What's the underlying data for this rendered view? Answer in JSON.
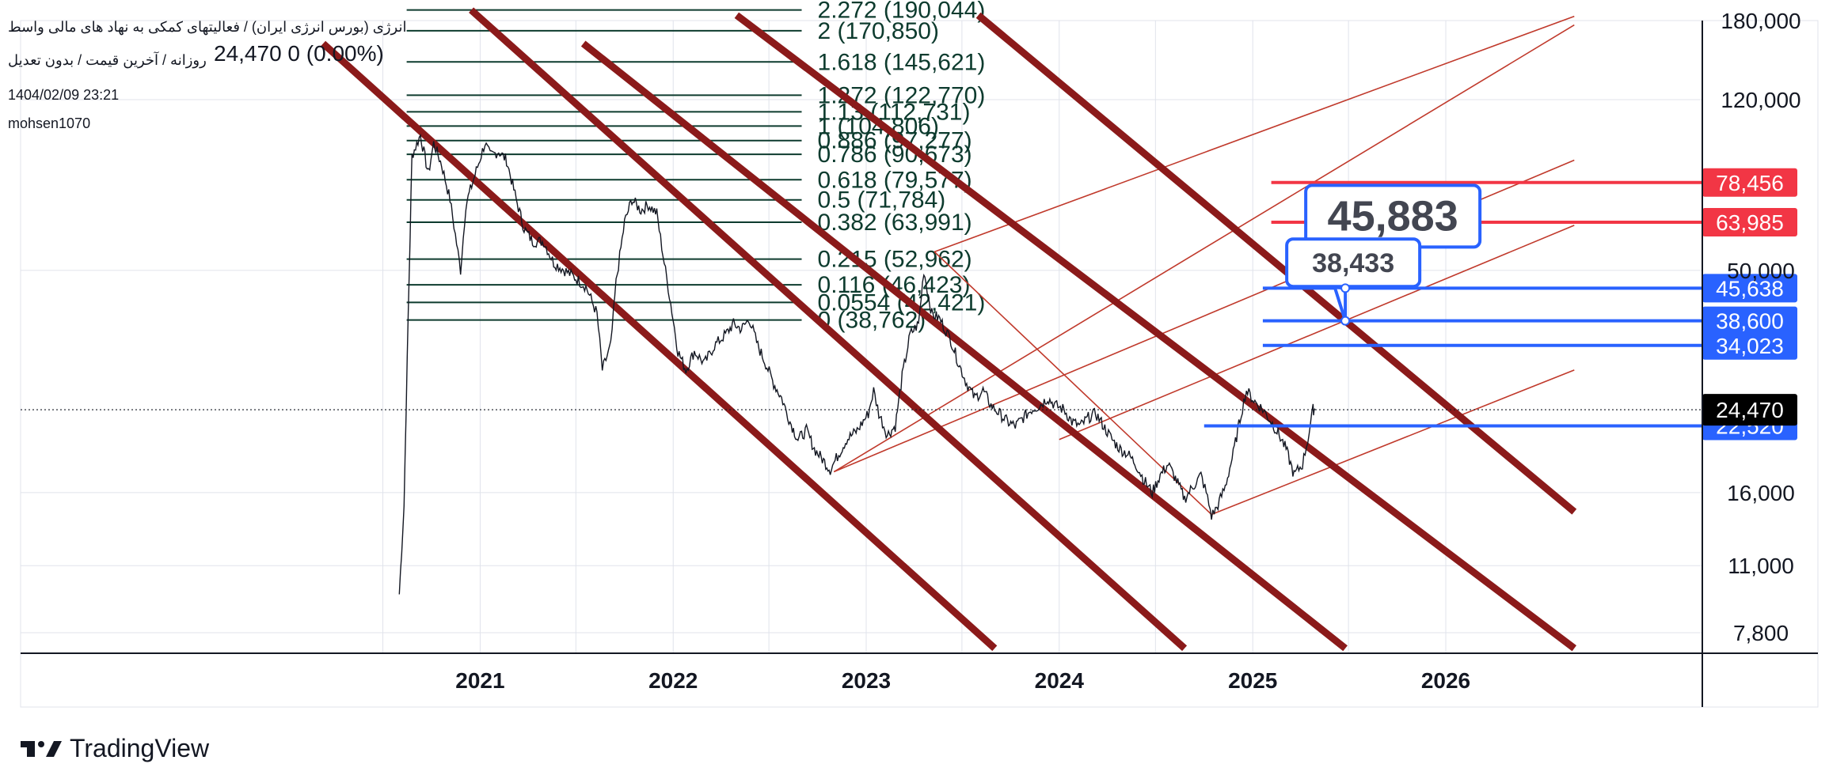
{
  "header": {
    "title": "انرژی (بورس انرژی ایران) / فعالیتهای کمکی به نهاد های مالی واسط",
    "subtitle": "روزانه / آخرین قیمت / بدون تعدیل",
    "timestamp": "1404/02/09 23:21",
    "author": "mohsen1070",
    "last_value": "24,470",
    "change": "0 (0.00%)"
  },
  "brand": {
    "name": "TradingView"
  },
  "colors": {
    "price": "#131722",
    "fib": "#0d3b2e",
    "channel": "#8b1a1a",
    "thin_red": "#c0392b",
    "blue": "#2962ff",
    "red": "#f23645",
    "grid": "#e0e3eb"
  },
  "chart_data": {
    "type": "line",
    "title": "",
    "xlabel": "",
    "ylabel": "",
    "y_scale": "log",
    "x_ticks": [
      "2021",
      "2022",
      "2023",
      "2024",
      "2025",
      "2026"
    ],
    "y_ticks": [
      "180,000",
      "120,000",
      "50,000",
      "16,000",
      "11,000",
      "7,800"
    ],
    "ylim": [
      7200,
      185000
    ],
    "series": [
      {
        "values": [
          [
            "2020-08-01",
            9500
          ],
          [
            "2020-08-10",
            15000
          ],
          [
            "2020-08-18",
            40000
          ],
          [
            "2020-08-25",
            90000
          ],
          [
            "2020-09-10",
            100000
          ],
          [
            "2020-09-25",
            82000
          ],
          [
            "2020-10-05",
            96000
          ],
          [
            "2020-10-20",
            86000
          ],
          [
            "2020-11-05",
            72000
          ],
          [
            "2020-11-15",
            60000
          ],
          [
            "2020-11-25",
            50000
          ],
          [
            "2020-12-05",
            70000
          ],
          [
            "2020-12-20",
            80000
          ],
          [
            "2021-01-10",
            96000
          ],
          [
            "2021-01-20",
            90000
          ],
          [
            "2021-02-05",
            92000
          ],
          [
            "2021-02-20",
            88000
          ],
          [
            "2021-03-10",
            72000
          ],
          [
            "2021-03-25",
            62000
          ],
          [
            "2021-04-10",
            58000
          ],
          [
            "2021-05-01",
            58000
          ],
          [
            "2021-05-20",
            52000
          ],
          [
            "2021-06-10",
            50000
          ],
          [
            "2021-07-01",
            48000
          ],
          [
            "2021-07-20",
            46000
          ],
          [
            "2021-08-10",
            40000
          ],
          [
            "2021-08-20",
            30000
          ],
          [
            "2021-09-05",
            34000
          ],
          [
            "2021-09-15",
            47000
          ],
          [
            "2021-10-01",
            64000
          ],
          [
            "2021-10-15",
            72000
          ],
          [
            "2021-11-01",
            68000
          ],
          [
            "2021-11-15",
            70000
          ],
          [
            "2021-12-01",
            67000
          ],
          [
            "2021-12-15",
            52000
          ],
          [
            "2021-12-25",
            44000
          ],
          [
            "2022-01-10",
            33000
          ],
          [
            "2022-01-25",
            30000
          ],
          [
            "2022-02-10",
            33000
          ],
          [
            "2022-03-01",
            31000
          ],
          [
            "2022-03-20",
            34000
          ],
          [
            "2022-04-10",
            36000
          ],
          [
            "2022-04-25",
            38000
          ],
          [
            "2022-05-10",
            37000
          ],
          [
            "2022-05-25",
            39000
          ],
          [
            "2022-06-10",
            34000
          ],
          [
            "2022-06-25",
            31000
          ],
          [
            "2022-07-10",
            28000
          ],
          [
            "2022-07-25",
            26000
          ],
          [
            "2022-08-10",
            23000
          ],
          [
            "2022-08-25",
            21000
          ],
          [
            "2022-09-10",
            22000
          ],
          [
            "2022-09-25",
            20000
          ],
          [
            "2022-10-10",
            19000
          ],
          [
            "2022-10-25",
            18000
          ],
          [
            "2022-11-10",
            19500
          ],
          [
            "2022-11-25",
            21000
          ],
          [
            "2022-12-15",
            22000
          ],
          [
            "2023-01-05",
            24000
          ],
          [
            "2023-01-15",
            27000
          ],
          [
            "2023-01-25",
            24000
          ],
          [
            "2023-02-10",
            21500
          ],
          [
            "2023-02-25",
            22500
          ],
          [
            "2023-03-10",
            29000
          ],
          [
            "2023-03-25",
            36000
          ],
          [
            "2023-04-10",
            38000
          ],
          [
            "2023-04-20",
            50000
          ],
          [
            "2023-05-05",
            40000
          ],
          [
            "2023-05-20",
            39000
          ],
          [
            "2023-06-10",
            35000
          ],
          [
            "2023-06-25",
            31000
          ],
          [
            "2023-07-10",
            28000
          ],
          [
            "2023-07-25",
            26000
          ],
          [
            "2023-08-10",
            27000
          ],
          [
            "2023-08-25",
            25000
          ],
          [
            "2023-09-10",
            24000
          ],
          [
            "2023-09-25",
            23000
          ],
          [
            "2023-10-10",
            22500
          ],
          [
            "2023-10-25",
            23500
          ],
          [
            "2023-11-10",
            24500
          ],
          [
            "2023-11-25",
            25000
          ],
          [
            "2023-12-10",
            26000
          ],
          [
            "2023-12-25",
            25000
          ],
          [
            "2024-01-10",
            24500
          ],
          [
            "2024-01-25",
            23000
          ],
          [
            "2024-02-10",
            22500
          ],
          [
            "2024-02-25",
            23500
          ],
          [
            "2024-03-10",
            24000
          ],
          [
            "2024-03-25",
            22500
          ],
          [
            "2024-04-10",
            21000
          ],
          [
            "2024-04-25",
            20000
          ],
          [
            "2024-05-10",
            19500
          ],
          [
            "2024-05-25",
            18500
          ],
          [
            "2024-06-10",
            17000
          ],
          [
            "2024-06-25",
            16000
          ],
          [
            "2024-07-10",
            17500
          ],
          [
            "2024-07-25",
            18500
          ],
          [
            "2024-08-10",
            17000
          ],
          [
            "2024-08-25",
            15500
          ],
          [
            "2024-09-10",
            16500
          ],
          [
            "2024-09-25",
            17500
          ],
          [
            "2024-10-05",
            16000
          ],
          [
            "2024-10-15",
            14200
          ],
          [
            "2024-10-25",
            14800
          ],
          [
            "2024-11-10",
            16500
          ],
          [
            "2024-11-25",
            19500
          ],
          [
            "2024-12-10",
            24000
          ],
          [
            "2024-12-20",
            27000
          ],
          [
            "2025-01-05",
            25500
          ],
          [
            "2025-01-20",
            24500
          ],
          [
            "2025-02-05",
            23000
          ],
          [
            "2025-02-20",
            21500
          ],
          [
            "2025-03-05",
            20000
          ],
          [
            "2025-03-20",
            17500
          ],
          [
            "2025-04-05",
            18500
          ],
          [
            "2025-04-15",
            21000
          ],
          [
            "2025-04-25",
            24500
          ],
          [
            "2025-04-29",
            24470
          ]
        ]
      }
    ],
    "fibonacci": [
      {
        "label": "2.272 (190,044)",
        "value": 190044
      },
      {
        "label": "2 (170,850)",
        "value": 170850
      },
      {
        "label": "1.618 (145,621)",
        "value": 145621
      },
      {
        "label": "1.272 (122,770)",
        "value": 122770
      },
      {
        "label": "1.13 (112,731)",
        "value": 112731
      },
      {
        "label": "1 (104,806)",
        "value": 104806
      },
      {
        "label": "0.886 (97,277)",
        "value": 97277
      },
      {
        "label": "0.786 (90,673)",
        "value": 90673
      },
      {
        "label": "0.618 (79,577)",
        "value": 79577
      },
      {
        "label": "0.5 (71,784)",
        "value": 71784
      },
      {
        "label": "0.382 (63,991)",
        "value": 63991
      },
      {
        "label": "0.215 (52,962)",
        "value": 52962
      },
      {
        "label": "0.116 (46,423)",
        "value": 46423
      },
      {
        "label": "0.0554 (42,421)",
        "value": 42421
      },
      {
        "label": "0 (38,762)",
        "value": 38762
      }
    ],
    "fib_start": "2020-08-15",
    "fib_end": "2022-09-01",
    "horizontal_levels": [
      {
        "value": 78456,
        "label": "78,456",
        "color": "#f23645",
        "start": "2025-02-05"
      },
      {
        "value": 63985,
        "label": "63,985",
        "color": "#f23645",
        "start": "2025-02-05"
      },
      {
        "value": 45638,
        "label": "45,638",
        "color": "#2962ff",
        "start": "2025-01-20"
      },
      {
        "value": 38600,
        "label": "38,600",
        "color": "#2962ff",
        "start": "2025-01-20"
      },
      {
        "value": 34023,
        "label": "34,023",
        "color": "#2962ff",
        "start": "2025-01-20"
      },
      {
        "value": 22520,
        "label": "22,520",
        "color": "#2962ff",
        "start": "2024-10-01"
      }
    ],
    "last_price": {
      "value": 24470,
      "label": "24,470"
    },
    "callouts": [
      {
        "label": "45,883",
        "value": 45883,
        "box_date": "2025-07-25",
        "box_value": 66000,
        "anchor_date": "2025-06-25",
        "anchor_value": 38600,
        "size": "large"
      },
      {
        "label": "38,433",
        "value": 38433,
        "box_date": "2025-07-25",
        "box_value": 52000,
        "anchor_date": "2025-06-25",
        "anchor_value": 45638,
        "size": "small"
      }
    ],
    "thick_channel_lines": [
      {
        "from": [
          "2020-03-10",
          160000
        ],
        "to": [
          "2023-09-01",
          7200
        ]
      },
      {
        "from": [
          "2020-12-15",
          190000
        ],
        "to": [
          "2024-08-25",
          7200
        ]
      },
      {
        "from": [
          "2021-07-15",
          160000
        ],
        "to": [
          "2025-06-25",
          7200
        ]
      },
      {
        "from": [
          "2022-05-01",
          185000
        ],
        "to": [
          "2026-09-01",
          7200
        ]
      },
      {
        "from": [
          "2023-08-01",
          185000
        ],
        "to": [
          "2026-09-01",
          14500
        ]
      }
    ],
    "thin_lines": [
      {
        "from": [
          "2022-11-01",
          17800
        ],
        "to": [
          "2026-09-01",
          176000
        ]
      },
      {
        "from": [
          "2023-05-10",
          55000
        ],
        "to": [
          "2024-10-15",
          14300
        ]
      },
      {
        "from": [
          "2024-10-15",
          14300
        ],
        "to": [
          "2026-09-01",
          30000
        ]
      },
      {
        "from": [
          "2022-11-01",
          17800
        ],
        "to": [
          "2026-09-01",
          88000
        ]
      },
      {
        "from": [
          "2024-01-01",
          21000
        ],
        "to": [
          "2026-09-01",
          63000
        ]
      },
      {
        "from": [
          "2023-05-10",
          55000
        ],
        "to": [
          "2026-09-01",
          184000
        ]
      }
    ]
  }
}
